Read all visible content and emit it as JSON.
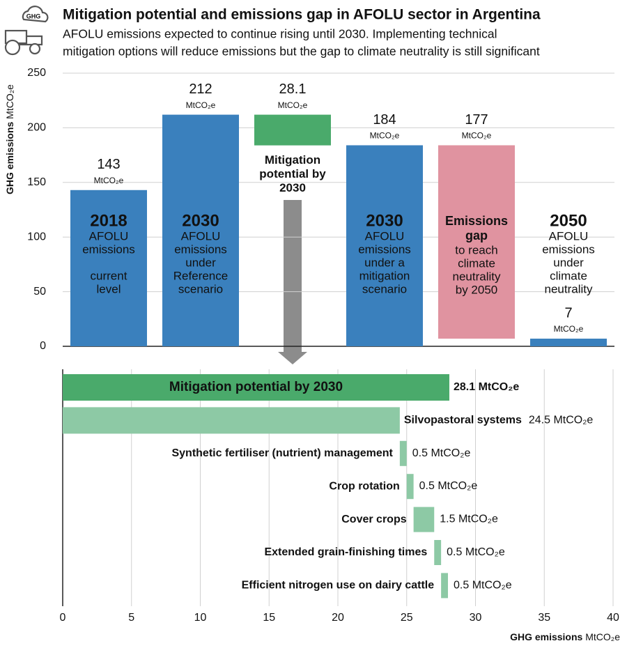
{
  "icon_label": "GHG",
  "chart_data": [
    {
      "type": "waterfall",
      "title": "Mitigation potential and emissions gap in AFOLU sector in Argentina",
      "subtitle": [
        "AFOLU emissions expected to continue rising until 2030. Implementing technical",
        "mitigation options will reduce emissions but the gap to climate neutrality is still significant"
      ],
      "y_label": "GHG emissions",
      "unit": "MtCO₂e",
      "ylim": [
        0,
        250
      ],
      "yticks": [
        0,
        50,
        100,
        150,
        200,
        250
      ],
      "grid": true,
      "bars": [
        {
          "kind": "total",
          "value": 143,
          "color": "#3a80bd",
          "text_color": "#ffffff",
          "heading": [
            "2018"
          ],
          "lines": [
            [
              "AFOLU",
              "emissions"
            ],
            [
              "current",
              "level"
            ]
          ]
        },
        {
          "kind": "total",
          "value": 212,
          "color": "#3a80bd",
          "text_color": "#ffffff",
          "heading": [
            "2030"
          ],
          "lines": [
            [
              "AFOLU",
              "emissions",
              "under",
              "Reference",
              "scenario"
            ]
          ]
        },
        {
          "kind": "decrease",
          "value": 28.1,
          "color": "#4aaa6b",
          "text_color": "#111111",
          "text_position": "below",
          "lines": [
            [
              "Mitigation",
              "potential by",
              "2030"
            ]
          ]
        },
        {
          "kind": "total",
          "value": 184,
          "color": "#3a80bd",
          "text_color": "#ffffff",
          "heading": [
            "2030"
          ],
          "lines": [
            [
              "AFOLU",
              "emissions",
              "under a",
              "mitigation",
              "scenario"
            ]
          ]
        },
        {
          "kind": "gap",
          "value": 177,
          "color": "#e093a0",
          "text_color": "#ffffff",
          "heading_color": "#1f2a5c",
          "heading": [
            "Emissions",
            "gap"
          ],
          "lines": [
            [
              "to reach",
              "climate",
              "neutrality",
              "by 2050"
            ]
          ]
        },
        {
          "kind": "total",
          "value": 7,
          "color": "#3a80bd",
          "text_color": "#111111",
          "heading": [
            "2050"
          ],
          "lines": [
            [
              "AFOLU",
              "emissions",
              "under",
              "climate",
              "neutrality"
            ]
          ]
        }
      ]
    },
    {
      "type": "waterfall_h",
      "x_label": "GHG emissions",
      "unit": "MtCO₂e",
      "xlim": [
        0,
        40
      ],
      "xticks": [
        0,
        5,
        10,
        15,
        20,
        25,
        30,
        35,
        40
      ],
      "grid": true,
      "total": {
        "name": "Mitigation potential by 2030",
        "value": 28.1,
        "color": "#4aaa6b"
      },
      "categories": [
        "Silvopastoral systems",
        "Synthetic fertiliser (nutrient) management",
        "Crop rotation",
        "Cover crops",
        "Extended grain-finishing times",
        "Efficient nitrogen use on dairy cattle"
      ],
      "values": [
        24.5,
        0.5,
        0.5,
        1.5,
        0.5,
        0.5
      ],
      "color": "#8dc9a5"
    }
  ]
}
